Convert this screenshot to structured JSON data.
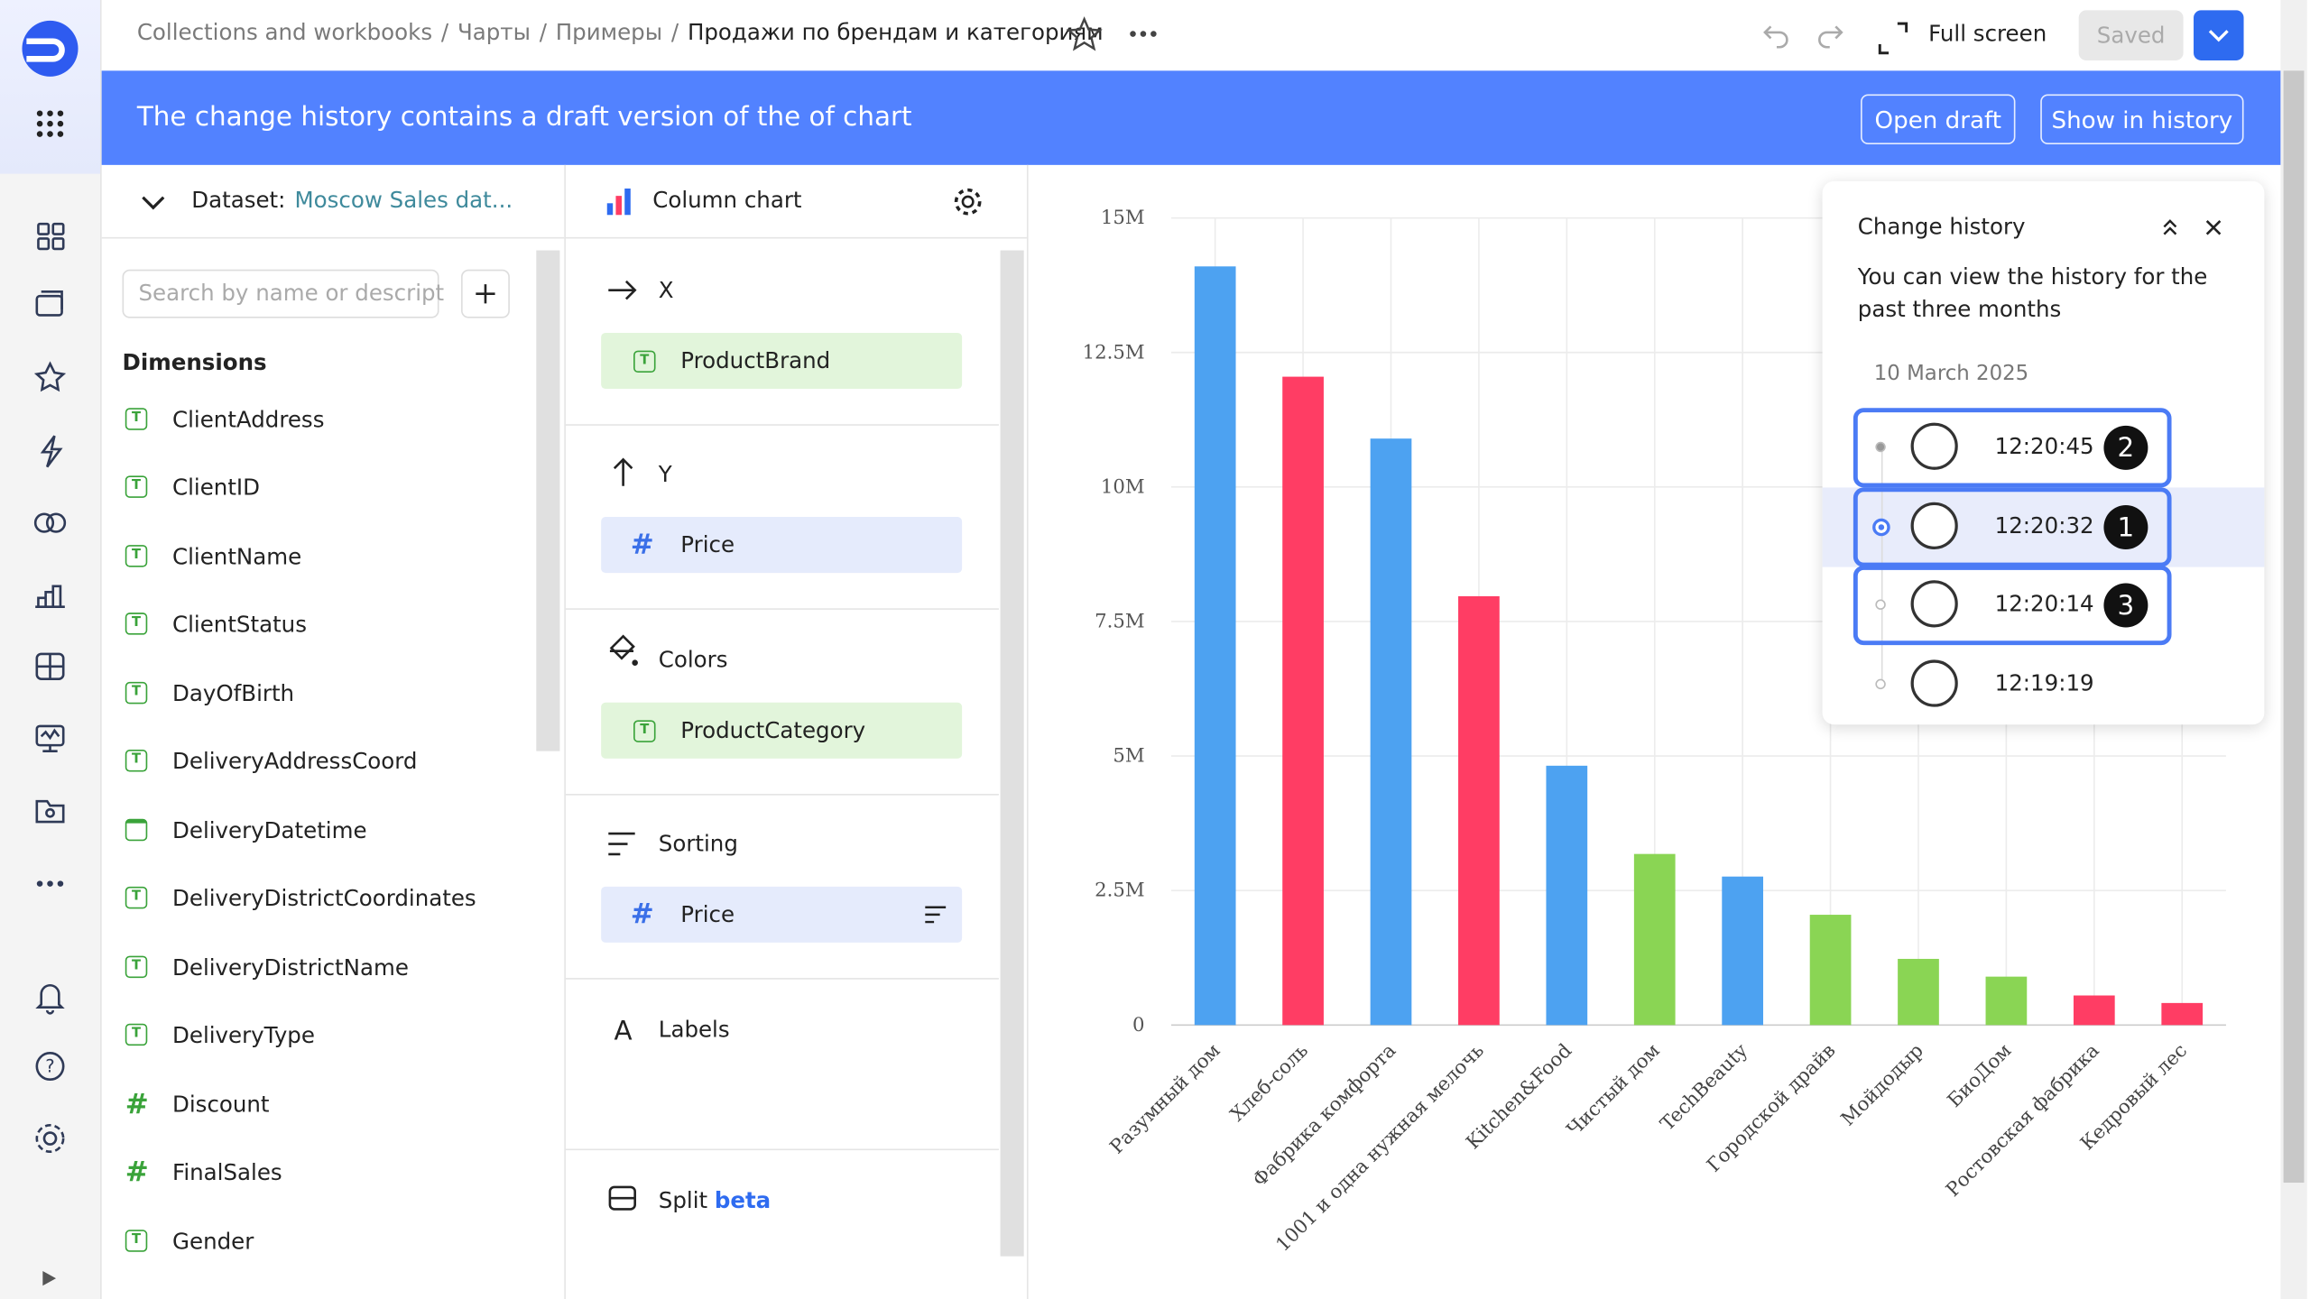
{
  "header": {
    "breadcrumbs": [
      "Collections and workbooks",
      "Чарты",
      "Примеры"
    ],
    "separator": "/",
    "current": "Продажи по брендам и категориям",
    "fullscreen": "Full screen",
    "saved": "Saved"
  },
  "banner": {
    "message": "The change history contains a draft version of the of chart",
    "open_draft": "Open draft",
    "show_history": "Show in history"
  },
  "dataset": {
    "label": "Dataset:",
    "name": "Moscow Sales dat...",
    "search_placeholder": "Search by name or descript",
    "section": "Dimensions",
    "fields": [
      "ClientAddress",
      "ClientID",
      "ClientName",
      "ClientStatus",
      "DayOfBirth",
      "DeliveryAddressCoord",
      "DeliveryDatetime",
      "DeliveryDistrictCoordinates",
      "DeliveryDistrictName",
      "DeliveryType",
      "Discount",
      "FinalSales",
      "Gender"
    ]
  },
  "visualization": {
    "type": "Column chart",
    "sections": [
      {
        "title": "X",
        "field": "ProductBrand"
      },
      {
        "title": "Y",
        "field": "Price"
      },
      {
        "title": "Colors",
        "field": "ProductCategory"
      },
      {
        "title": "Sorting",
        "field": "Price"
      },
      {
        "title": "Labels"
      }
    ],
    "split": "Split",
    "split_badge": "beta"
  },
  "history": {
    "title": "Change history",
    "note": "You can view the history for the past three months",
    "date": "10 March 2025",
    "versions": [
      {
        "time": "12:20:45",
        "badge": "2"
      },
      {
        "time": "12:20:32",
        "badge": "1"
      },
      {
        "time": "12:20:14",
        "badge": "3"
      },
      {
        "time": "12:19:19"
      }
    ]
  },
  "chart_data": {
    "type": "bar",
    "categories": [
      "Разумный дом",
      "Хлеб-соль",
      "Фабрика комфорта",
      "1001 и одна нужная мелочь",
      "Kitchen&Food",
      "Чистый дом",
      "TechBeauty",
      "Городской драйв",
      "Мойдодыр",
      "БиоДом",
      "Ростовская фабрика",
      "Кедровый лес"
    ],
    "values": [
      14100000,
      12050000,
      10900000,
      7970000,
      4820000,
      3180000,
      2760000,
      2050000,
      1230000,
      900000,
      550000,
      410000
    ],
    "colors": [
      "#4da2f1",
      "#ff3d64",
      "#4da2f1",
      "#ff3d64",
      "#4da2f1",
      "#8ad554",
      "#4da2f1",
      "#8ad554",
      "#8ad554",
      "#8ad554",
      "#ff3d64",
      "#ff3d64"
    ],
    "ylim": [
      0,
      15000000
    ],
    "yticks": [
      {
        "value": 0,
        "label": "0"
      },
      {
        "value": 2500000,
        "label": "2.5M"
      },
      {
        "value": 5000000,
        "label": "5M"
      },
      {
        "value": 7500000,
        "label": "7.5M"
      },
      {
        "value": 10000000,
        "label": "10M"
      },
      {
        "value": 12500000,
        "label": "12.5M"
      },
      {
        "value": 15000000,
        "label": "15M"
      }
    ],
    "grid": true
  }
}
